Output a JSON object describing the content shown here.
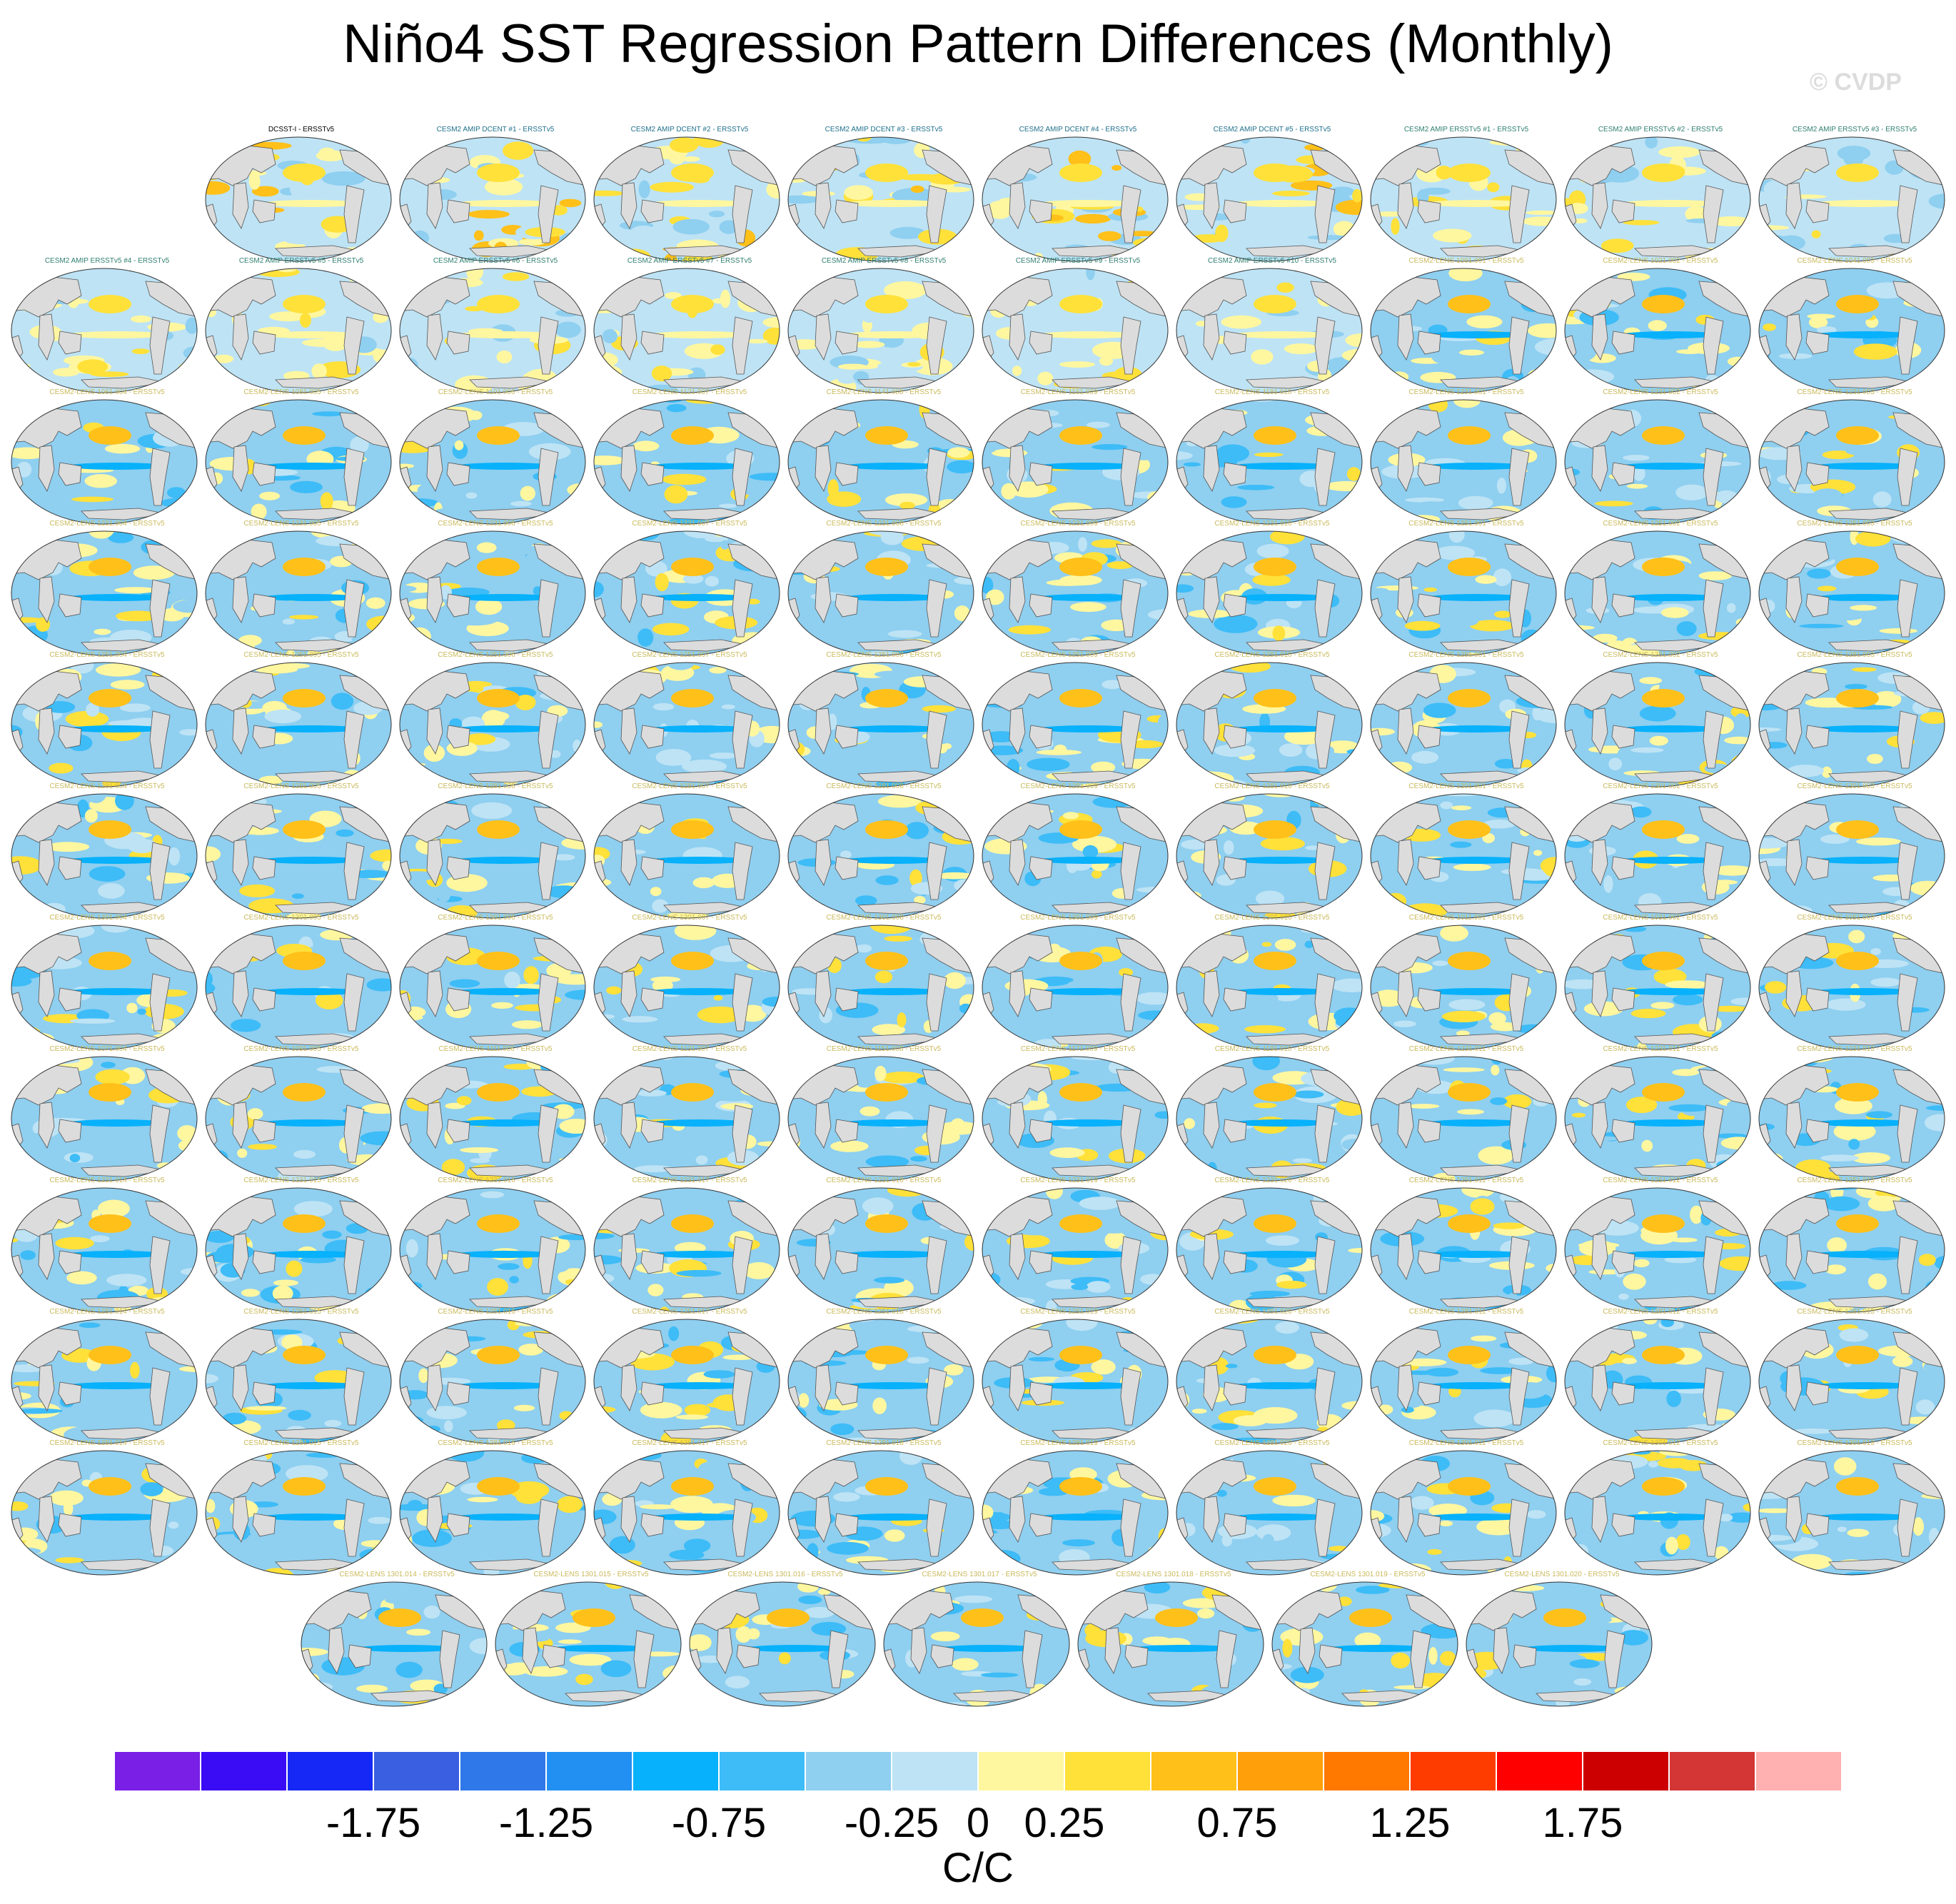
{
  "title": "Niño4 SST Regression Pattern Differences (Monthly)",
  "watermark": "© CVDP",
  "colors": {
    "obs_title": "#000000",
    "amip_dcent_title": "#1f6f8b",
    "amip_ersst_title": "#2f7f6f",
    "lens_title": "#c9b95a",
    "land": "#dcdcdc",
    "coast": "#555555"
  },
  "chart_data": {
    "type": "heatmap",
    "description_units": "C/C",
    "colorbar": {
      "colors": [
        "#7a1fe6",
        "#3a0cf5",
        "#1528f5",
        "#3a5fe0",
        "#2f78ea",
        "#2190f2",
        "#08b1fb",
        "#3dbcf7",
        "#8fcff0",
        "#bde3f5",
        "#fff7a0",
        "#ffe13a",
        "#ffc019",
        "#ffa00a",
        "#ff7800",
        "#ff3c00",
        "#ff0000",
        "#cc0000",
        "#d43535",
        "#ffb0b0"
      ],
      "levels": [
        -2.25,
        -2.0,
        -1.75,
        -1.5,
        -1.25,
        -1.0,
        -0.75,
        -0.5,
        -0.25,
        0,
        0.25,
        0.5,
        0.75,
        1.0,
        1.25,
        1.5,
        1.75,
        2.0,
        2.25
      ],
      "tick_labels": [
        "-1.75",
        "-1.25",
        "-0.75",
        "-0.25",
        "0",
        "0.25",
        "0.75",
        "1.25",
        "1.75"
      ],
      "tick_values": [
        -1.75,
        -1.25,
        -0.75,
        -0.25,
        0,
        0.25,
        0.75,
        1.25,
        1.75
      ],
      "units": "C/C"
    },
    "panels": [
      {
        "title": "DCSST-I - ERSSTv5",
        "group": "obs"
      },
      {
        "title": "CESM2 AMIP DCENT #1 - ERSSTv5",
        "group": "amip_dcent"
      },
      {
        "title": "CESM2 AMIP DCENT #2 - ERSSTv5",
        "group": "amip_dcent"
      },
      {
        "title": "CESM2 AMIP DCENT #3 - ERSSTv5",
        "group": "amip_dcent"
      },
      {
        "title": "CESM2 AMIP DCENT #4 - ERSSTv5",
        "group": "amip_dcent"
      },
      {
        "title": "CESM2 AMIP DCENT #5 - ERSSTv5",
        "group": "amip_dcent"
      },
      {
        "title": "CESM2 AMIP ERSSTv5 #1 - ERSSTv5",
        "group": "amip_ersst"
      },
      {
        "title": "CESM2 AMIP ERSSTv5 #2 - ERSSTv5",
        "group": "amip_ersst"
      },
      {
        "title": "CESM2 AMIP ERSSTv5 #3 - ERSSTv5",
        "group": "amip_ersst"
      },
      {
        "title": "CESM2 AMIP ERSSTv5 #4 - ERSSTv5",
        "group": "amip_ersst"
      },
      {
        "title": "CESM2 AMIP ERSSTv5 #5 - ERSSTv5",
        "group": "amip_ersst"
      },
      {
        "title": "CESM2 AMIP ERSSTv5 #6 - ERSSTv5",
        "group": "amip_ersst"
      },
      {
        "title": "CESM2 AMIP ERSSTv5 #7 - ERSSTv5",
        "group": "amip_ersst"
      },
      {
        "title": "CESM2 AMIP ERSSTv5 #8 - ERSSTv5",
        "group": "amip_ersst"
      },
      {
        "title": "CESM2 AMIP ERSSTv5 #9 - ERSSTv5",
        "group": "amip_ersst"
      },
      {
        "title": "CESM2 AMIP ERSSTv5 #10 - ERSSTv5",
        "group": "amip_ersst"
      },
      {
        "title": "CESM2-LENS 1001.001 - ERSSTv5",
        "group": "lens"
      },
      {
        "title": "CESM2-LENS 1021.002 - ERSSTv5",
        "group": "lens"
      },
      {
        "title": "CESM2-LENS 1041.003 - ERSSTv5",
        "group": "lens"
      },
      {
        "title": "CESM2-LENS 1061.004 - ERSSTv5",
        "group": "lens"
      },
      {
        "title": "CESM2-LENS 1081.005 - ERSSTv5",
        "group": "lens"
      },
      {
        "title": "CESM2-LENS 1101.006 - ERSSTv5",
        "group": "lens"
      },
      {
        "title": "CESM2-LENS 1121.007 - ERSSTv5",
        "group": "lens"
      },
      {
        "title": "CESM2-LENS 1141.008 - ERSSTv5",
        "group": "lens"
      },
      {
        "title": "CESM2-LENS 1161.009 - ERSSTv5",
        "group": "lens"
      },
      {
        "title": "CESM2-LENS 1181.010 - ERSSTv5",
        "group": "lens"
      },
      {
        "title": "CESM2-LENS 1231.001 - ERSSTv5",
        "group": "lens"
      },
      {
        "title": "CESM2-LENS 1231.002 - ERSSTv5",
        "group": "lens"
      },
      {
        "title": "CESM2-LENS 1231.003 - ERSSTv5",
        "group": "lens"
      },
      {
        "title": "CESM2-LENS 1231.004 - ERSSTv5",
        "group": "lens"
      },
      {
        "title": "CESM2-LENS 1231.005 - ERSSTv5",
        "group": "lens"
      },
      {
        "title": "CESM2-LENS 1231.006 - ERSSTv5",
        "group": "lens"
      },
      {
        "title": "CESM2-LENS 1231.007 - ERSSTv5",
        "group": "lens"
      },
      {
        "title": "CESM2-LENS 1231.008 - ERSSTv5",
        "group": "lens"
      },
      {
        "title": "CESM2-LENS 1231.009 - ERSSTv5",
        "group": "lens"
      },
      {
        "title": "CESM2-LENS 1231.010 - ERSSTv5",
        "group": "lens"
      },
      {
        "title": "CESM2-LENS 1251.001 - ERSSTv5",
        "group": "lens"
      },
      {
        "title": "CESM2-LENS 1251.002 - ERSSTv5",
        "group": "lens"
      },
      {
        "title": "CESM2-LENS 1251.003 - ERSSTv5",
        "group": "lens"
      },
      {
        "title": "CESM2-LENS 1251.004 - ERSSTv5",
        "group": "lens"
      },
      {
        "title": "CESM2-LENS 1251.005 - ERSSTv5",
        "group": "lens"
      },
      {
        "title": "CESM2-LENS 1251.006 - ERSSTv5",
        "group": "lens"
      },
      {
        "title": "CESM2-LENS 1251.007 - ERSSTv5",
        "group": "lens"
      },
      {
        "title": "CESM2-LENS 1251.008 - ERSSTv5",
        "group": "lens"
      },
      {
        "title": "CESM2-LENS 1251.009 - ERSSTv5",
        "group": "lens"
      },
      {
        "title": "CESM2-LENS 1251.010 - ERSSTv5",
        "group": "lens"
      },
      {
        "title": "CESM2-LENS 1281.001 - ERSSTv5",
        "group": "lens"
      },
      {
        "title": "CESM2-LENS 1281.002 - ERSSTv5",
        "group": "lens"
      },
      {
        "title": "CESM2-LENS 1281.003 - ERSSTv5",
        "group": "lens"
      },
      {
        "title": "CESM2-LENS 1281.004 - ERSSTv5",
        "group": "lens"
      },
      {
        "title": "CESM2-LENS 1281.005 - ERSSTv5",
        "group": "lens"
      },
      {
        "title": "CESM2-LENS 1281.006 - ERSSTv5",
        "group": "lens"
      },
      {
        "title": "CESM2-LENS 1281.007 - ERSSTv5",
        "group": "lens"
      },
      {
        "title": "CESM2-LENS 1281.008 - ERSSTv5",
        "group": "lens"
      },
      {
        "title": "CESM2-LENS 1281.009 - ERSSTv5",
        "group": "lens"
      },
      {
        "title": "CESM2-LENS 1281.010 - ERSSTv5",
        "group": "lens"
      },
      {
        "title": "CESM2-LENS 1301.001 - ERSSTv5",
        "group": "lens"
      },
      {
        "title": "CESM2-LENS 1301.002 - ERSSTv5",
        "group": "lens"
      },
      {
        "title": "CESM2-LENS 1301.003 - ERSSTv5",
        "group": "lens"
      },
      {
        "title": "CESM2-LENS 1301.004 - ERSSTv5",
        "group": "lens"
      },
      {
        "title": "CESM2-LENS 1301.005 - ERSSTv5",
        "group": "lens"
      },
      {
        "title": "CESM2-LENS 1301.006 - ERSSTv5",
        "group": "lens"
      },
      {
        "title": "CESM2-LENS 1301.007 - ERSSTv5",
        "group": "lens"
      },
      {
        "title": "CESM2-LENS 1301.008 - ERSSTv5",
        "group": "lens"
      },
      {
        "title": "CESM2-LENS 1301.009 - ERSSTv5",
        "group": "lens"
      },
      {
        "title": "CESM2-LENS 1301.010 - ERSSTv5",
        "group": "lens"
      },
      {
        "title": "CESM2-LENS 1011.001 - ERSSTv5",
        "group": "lens"
      },
      {
        "title": "CESM2-LENS 1031.002 - ERSSTv5",
        "group": "lens"
      },
      {
        "title": "CESM2-LENS 1051.003 - ERSSTv5",
        "group": "lens"
      },
      {
        "title": "CESM2-LENS 1071.004 - ERSSTv5",
        "group": "lens"
      },
      {
        "title": "CESM2-LENS 1091.005 - ERSSTv5",
        "group": "lens"
      },
      {
        "title": "CESM2-LENS 1111.006 - ERSSTv5",
        "group": "lens"
      },
      {
        "title": "CESM2-LENS 1131.007 - ERSSTv5",
        "group": "lens"
      },
      {
        "title": "CESM2-LENS 1151.008 - ERSSTv5",
        "group": "lens"
      },
      {
        "title": "CESM2-LENS 1171.009 - ERSSTv5",
        "group": "lens"
      },
      {
        "title": "CESM2-LENS 1191.010 - ERSSTv5",
        "group": "lens"
      },
      {
        "title": "CESM2-LENS 1231.011 - ERSSTv5",
        "group": "lens"
      },
      {
        "title": "CESM2-LENS 1231.012 - ERSSTv5",
        "group": "lens"
      },
      {
        "title": "CESM2-LENS 1231.013 - ERSSTv5",
        "group": "lens"
      },
      {
        "title": "CESM2-LENS 1231.014 - ERSSTv5",
        "group": "lens"
      },
      {
        "title": "CESM2-LENS 1231.015 - ERSSTv5",
        "group": "lens"
      },
      {
        "title": "CESM2-LENS 1231.016 - ERSSTv5",
        "group": "lens"
      },
      {
        "title": "CESM2-LENS 1231.017 - ERSSTv5",
        "group": "lens"
      },
      {
        "title": "CESM2-LENS 1231.018 - ERSSTv5",
        "group": "lens"
      },
      {
        "title": "CESM2-LENS 1231.019 - ERSSTv5",
        "group": "lens"
      },
      {
        "title": "CESM2-LENS 1231.020 - ERSSTv5",
        "group": "lens"
      },
      {
        "title": "CESM2-LENS 1251.011 - ERSSTv5",
        "group": "lens"
      },
      {
        "title": "CESM2-LENS 1251.012 - ERSSTv5",
        "group": "lens"
      },
      {
        "title": "CESM2-LENS 1251.013 - ERSSTv5",
        "group": "lens"
      },
      {
        "title": "CESM2-LENS 1251.014 - ERSSTv5",
        "group": "lens"
      },
      {
        "title": "CESM2-LENS 1251.015 - ERSSTv5",
        "group": "lens"
      },
      {
        "title": "CESM2-LENS 1251.016 - ERSSTv5",
        "group": "lens"
      },
      {
        "title": "CESM2-LENS 1251.017 - ERSSTv5",
        "group": "lens"
      },
      {
        "title": "CESM2-LENS 1251.018 - ERSSTv5",
        "group": "lens"
      },
      {
        "title": "CESM2-LENS 1251.019 - ERSSTv5",
        "group": "lens"
      },
      {
        "title": "CESM2-LENS 1251.020 - ERSSTv5",
        "group": "lens"
      },
      {
        "title": "CESM2-LENS 1281.011 - ERSSTv5",
        "group": "lens"
      },
      {
        "title": "CESM2-LENS 1281.012 - ERSSTv5",
        "group": "lens"
      },
      {
        "title": "CESM2-LENS 1281.013 - ERSSTv5",
        "group": "lens"
      },
      {
        "title": "CESM2-LENS 1281.014 - ERSSTv5",
        "group": "lens"
      },
      {
        "title": "CESM2-LENS 1281.015 - ERSSTv5",
        "group": "lens"
      },
      {
        "title": "CESM2-LENS 1281.016 - ERSSTv5",
        "group": "lens"
      },
      {
        "title": "CESM2-LENS 1281.017 - ERSSTv5",
        "group": "lens"
      },
      {
        "title": "CESM2-LENS 1281.018 - ERSSTv5",
        "group": "lens"
      },
      {
        "title": "CESM2-LENS 1281.019 - ERSSTv5",
        "group": "lens"
      },
      {
        "title": "CESM2-LENS 1281.020 - ERSSTv5",
        "group": "lens"
      },
      {
        "title": "CESM2-LENS 1301.011 - ERSSTv5",
        "group": "lens"
      },
      {
        "title": "CESM2-LENS 1301.012 - ERSSTv5",
        "group": "lens"
      },
      {
        "title": "CESM2-LENS 1301.013 - ERSSTv5",
        "group": "lens"
      },
      {
        "title": "CESM2-LENS 1301.014 - ERSSTv5",
        "group": "lens"
      },
      {
        "title": "CESM2-LENS 1301.015 - ERSSTv5",
        "group": "lens"
      },
      {
        "title": "CESM2-LENS 1301.016 - ERSSTv5",
        "group": "lens"
      },
      {
        "title": "CESM2-LENS 1301.017 - ERSSTv5",
        "group": "lens"
      },
      {
        "title": "CESM2-LENS 1301.018 - ERSSTv5",
        "group": "lens"
      },
      {
        "title": "CESM2-LENS 1301.019 - ERSSTv5",
        "group": "lens"
      },
      {
        "title": "CESM2-LENS 1301.020 - ERSSTv5",
        "group": "lens"
      }
    ]
  }
}
